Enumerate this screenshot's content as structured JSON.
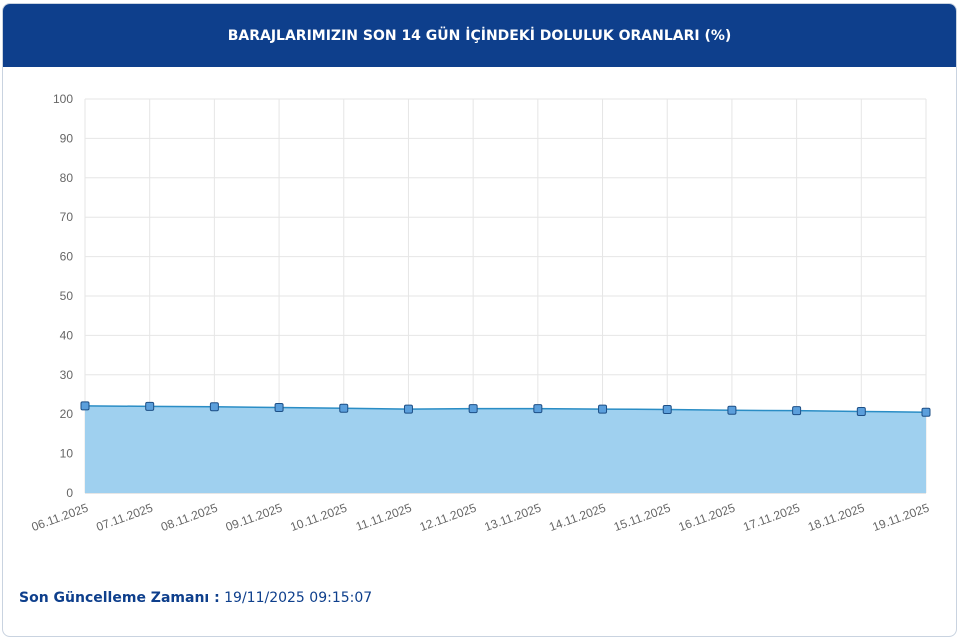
{
  "header": {
    "title": "BARAJLARIMIZIN SON 14 GÜN İÇİNDEKİ DOLULUK ORANLARI (%)"
  },
  "chart_data": {
    "type": "line",
    "categories": [
      "06.11.2025",
      "07.11.2025",
      "08.11.2025",
      "09.11.2025",
      "10.11.2025",
      "11.11.2025",
      "12.11.2025",
      "13.11.2025",
      "14.11.2025",
      "15.11.2025",
      "16.11.2025",
      "17.11.2025",
      "18.11.2025",
      "19.11.2025"
    ],
    "values": [
      22.1,
      22.0,
      21.9,
      21.7,
      21.5,
      21.3,
      21.4,
      21.4,
      21.3,
      21.2,
      21.0,
      20.9,
      20.7,
      20.5
    ],
    "color": "#2a8dc5",
    "fill_color": "#9fd0ef",
    "marker_color": "#5b9fdc",
    "ylim": [
      0,
      100
    ],
    "yticks": [
      0,
      10,
      20,
      30,
      40,
      50,
      60,
      70,
      80,
      90,
      100
    ],
    "grid": true
  },
  "footer": {
    "label": "Son Güncelleme Zamanı :",
    "value": "19/11/2025 09:15:07"
  }
}
